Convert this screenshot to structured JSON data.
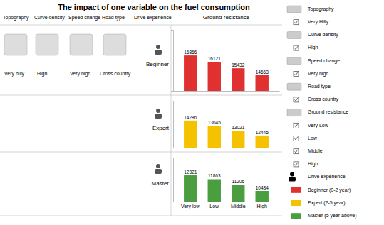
{
  "chart_data": [
    {
      "type": "bar",
      "title": "The impact of one variable on the fuel consumption",
      "subtitle": "Ground resistance",
      "ylabel": "Beginner",
      "categories": [
        "Very low",
        "Low",
        "Middle",
        "High"
      ],
      "series": [
        {
          "name": "Beginner (0-2 year)",
          "color": "#e03030",
          "values": [
            16866,
            16121,
            15432,
            14663
          ]
        }
      ],
      "ylim": [
        12903.44,
        19733.22
      ],
      "tick_labels": false,
      "data_labels": true,
      "legend": "right",
      "annotations": [
        "Topography",
        "Curve density",
        "Speed change",
        "Road type",
        "Drive experience",
        "Very hilly",
        "High",
        "Very high",
        "Cross country",
        "Topography",
        "Very Hilly",
        "Curve density",
        "High",
        "Speed change",
        "Very high",
        "Road type",
        "Cross country",
        "Ground resistance",
        "Very Low",
        "Low",
        "Middle",
        "High",
        "Drive experience"
      ]
    },
    {
      "type": "bar",
      "ylabel": "Expert",
      "categories": [
        "Very low",
        "Low",
        "Middle",
        "High"
      ],
      "series": [
        {
          "name": "Expert (2-5 year)",
          "color": "#f5c200",
          "values": [
            14286,
            13645,
            13021,
            12445
          ]
        }
      ],
      "ylim": [
        10951.6,
        16714.62
      ],
      "tick_labels": false,
      "data_labels": true
    },
    {
      "type": "bar",
      "ylabel": "Master",
      "categories": [
        "Very low",
        "Low",
        "Middle",
        "High"
      ],
      "series": [
        {
          "name": "Master (5 year above)",
          "color": "#4a9e3f",
          "values": [
            12321,
            11863,
            11206,
            10484
          ]
        }
      ],
      "ylim": [
        9225.92,
        14415.57
      ],
      "tick_labels": "x",
      "data_labels": true
    }
  ]
}
